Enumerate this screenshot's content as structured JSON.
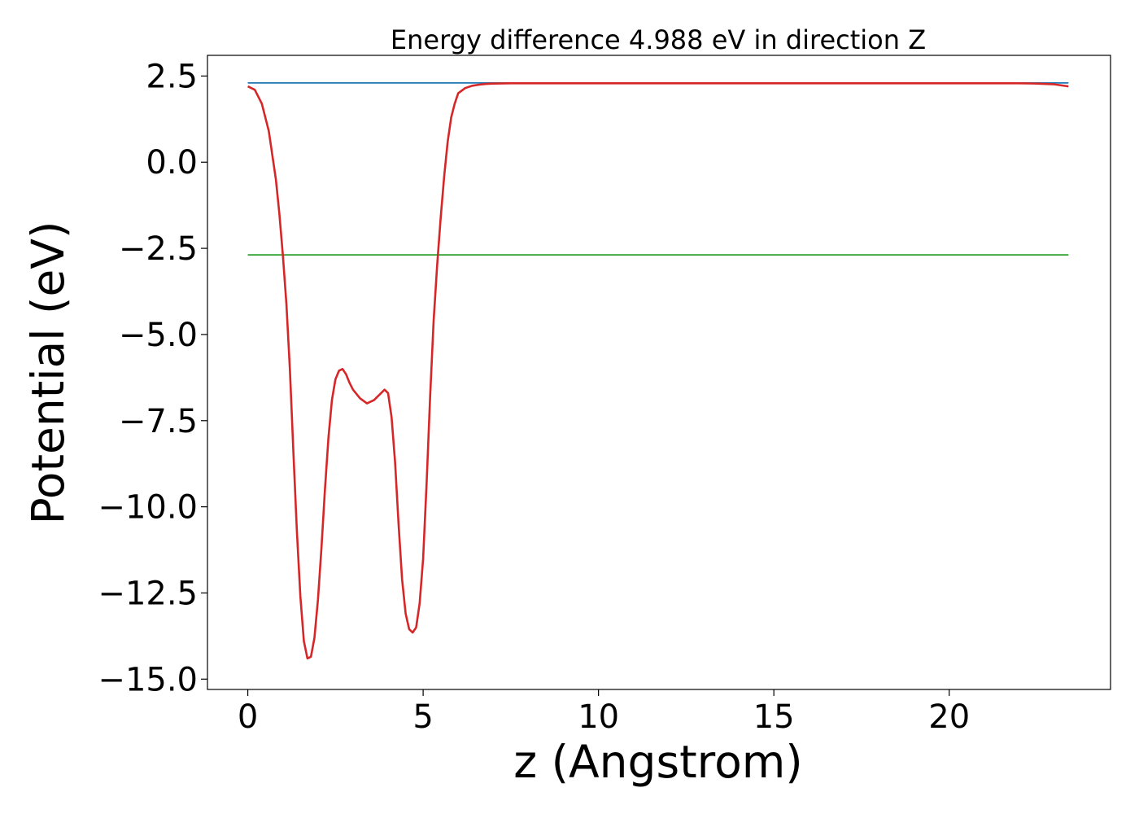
{
  "chart_data": {
    "type": "line",
    "title": "Energy difference 4.988 eV in direction Z",
    "xlabel": "z (Angstrom)",
    "ylabel": "Potential (eV)",
    "xlim": [
      -1.15,
      24.6
    ],
    "ylim": [
      -15.3,
      3.1
    ],
    "xticks": [
      0,
      5,
      10,
      15,
      20
    ],
    "xtick_labels": [
      "0",
      "5",
      "10",
      "15",
      "20"
    ],
    "yticks": [
      2.5,
      0.0,
      -2.5,
      -5.0,
      -7.5,
      -10.0,
      -12.5,
      -15.0
    ],
    "ytick_labels": [
      "2.5",
      "0.0",
      "−2.5",
      "−5.0",
      "−7.5",
      "−10.0",
      "−12.5",
      "−15.0"
    ],
    "grid": false,
    "series": [
      {
        "color": "#1f77b4",
        "x": [
          0,
          23.4
        ],
        "y": [
          2.3,
          2.3
        ]
      },
      {
        "color": "#2ca02c",
        "x": [
          0,
          23.4
        ],
        "y": [
          -2.69,
          -2.69
        ]
      },
      {
        "color": "#d62728",
        "x": [
          0,
          0.2,
          0.4,
          0.6,
          0.8,
          0.9,
          1.0,
          1.1,
          1.2,
          1.3,
          1.4,
          1.5,
          1.6,
          1.7,
          1.8,
          1.9,
          2.0,
          2.1,
          2.2,
          2.3,
          2.4,
          2.5,
          2.6,
          2.7,
          2.8,
          2.9,
          3.0,
          3.2,
          3.4,
          3.6,
          3.8,
          3.9,
          4.0,
          4.1,
          4.2,
          4.3,
          4.4,
          4.5,
          4.6,
          4.7,
          4.8,
          4.9,
          5.0,
          5.1,
          5.2,
          5.3,
          5.4,
          5.5,
          5.6,
          5.7,
          5.8,
          5.9,
          6.0,
          6.2,
          6.4,
          6.6,
          6.8,
          7.0,
          7.5,
          8.0,
          10.0,
          15.0,
          20.0,
          22.0,
          22.5,
          23.0,
          23.4
        ],
        "y": [
          2.2,
          2.1,
          1.7,
          0.9,
          -0.5,
          -1.5,
          -2.7,
          -4.1,
          -6.0,
          -8.4,
          -10.7,
          -12.6,
          -13.9,
          -14.4,
          -14.35,
          -13.8,
          -12.7,
          -11.2,
          -9.5,
          -8.0,
          -6.9,
          -6.3,
          -6.05,
          -6.0,
          -6.15,
          -6.4,
          -6.6,
          -6.85,
          -7.0,
          -6.9,
          -6.7,
          -6.6,
          -6.7,
          -7.4,
          -8.7,
          -10.5,
          -12.1,
          -13.1,
          -13.55,
          -13.65,
          -13.5,
          -12.8,
          -11.5,
          -9.3,
          -6.8,
          -4.6,
          -3.0,
          -1.6,
          -0.4,
          0.6,
          1.3,
          1.7,
          2.0,
          2.15,
          2.22,
          2.25,
          2.27,
          2.28,
          2.29,
          2.29,
          2.29,
          2.29,
          2.29,
          2.29,
          2.28,
          2.26,
          2.2
        ]
      }
    ]
  }
}
